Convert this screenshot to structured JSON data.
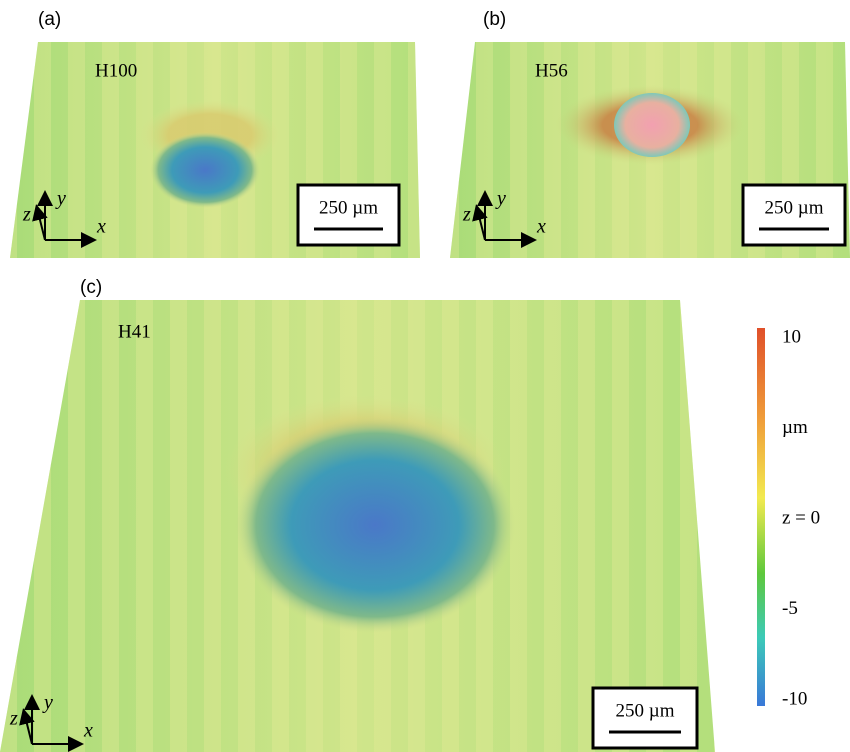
{
  "panels": [
    {
      "label": "(a)",
      "sample": "H100",
      "scale_bar": "250 µm",
      "axes": [
        "x",
        "y",
        "z"
      ]
    },
    {
      "label": "(b)",
      "sample": "H56",
      "scale_bar": "250 µm",
      "axes": [
        "x",
        "y",
        "z"
      ]
    },
    {
      "label": "(c)",
      "sample": "H41",
      "scale_bar": "250 µm",
      "axes": [
        "x",
        "y",
        "z"
      ]
    }
  ],
  "colorbar": {
    "unit": "µm",
    "range": [
      -10,
      10
    ],
    "ticks": [
      10,
      {
        "value": 0,
        "label": "z = 0"
      },
      -5,
      -10
    ]
  }
}
